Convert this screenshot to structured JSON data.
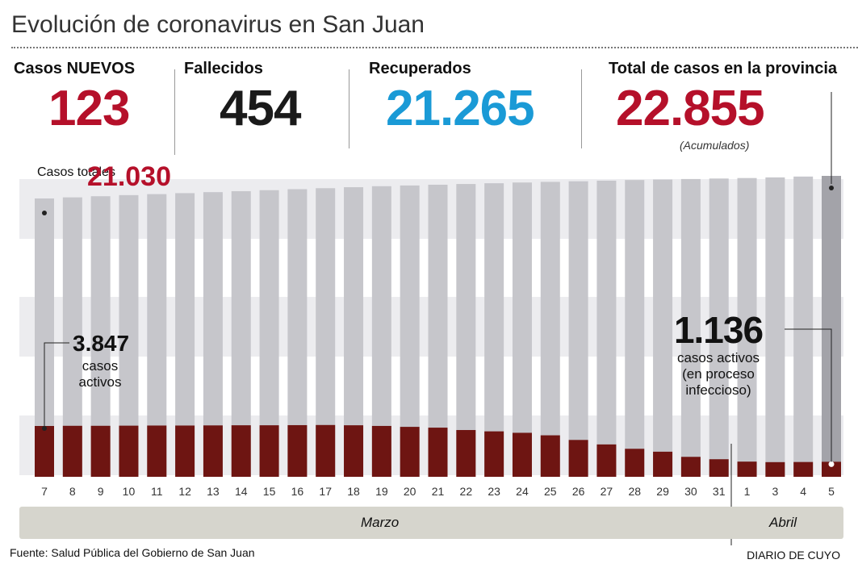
{
  "title": "Evolución de coronavirus en San Juan",
  "stats": {
    "nuevos": {
      "label": "Casos NUEVOS",
      "value": "123"
    },
    "fallecidos": {
      "label": "Fallecidos",
      "value": "454"
    },
    "recuperados": {
      "label": "Recuperados",
      "value": "21.265"
    },
    "total": {
      "label": "Total de casos en la provincia",
      "value": "22.855",
      "note": "(Acumulados)"
    }
  },
  "annotations": {
    "start_total_label": "Casos totales",
    "start_total_value": "21.030",
    "start_active_value": "3.847",
    "start_active_label": "casos activos",
    "end_active_value": "1.136",
    "end_active_label": "casos activos (en proceso infeccioso)"
  },
  "months": {
    "marzo": "Marzo",
    "abril": "Abril"
  },
  "source": "Fuente: Salud Pública del Gobierno de San Juan",
  "brand": "DIARIO DE CUYO",
  "colors": {
    "total_bar": "#c6c6cb",
    "total_bar_last": "#a3a3a9",
    "active_bar": "#6e1512",
    "accent_red": "#b5102a",
    "accent_blue": "#1a9ad6",
    "stripe": "#ececef"
  },
  "chart_data": {
    "type": "bar",
    "categories": [
      "7",
      "8",
      "9",
      "10",
      "11",
      "12",
      "13",
      "14",
      "15",
      "16",
      "17",
      "18",
      "19",
      "20",
      "21",
      "22",
      "23",
      "24",
      "25",
      "26",
      "27",
      "28",
      "29",
      "30",
      "31",
      "1",
      "3",
      "4",
      "5"
    ],
    "series": [
      {
        "name": "Casos totales",
        "values": [
          21030,
          21120,
          21210,
          21300,
          21380,
          21460,
          21540,
          21620,
          21700,
          21780,
          21860,
          21940,
          22020,
          22080,
          22140,
          22200,
          22260,
          22320,
          22370,
          22420,
          22470,
          22520,
          22560,
          22600,
          22640,
          22680,
          22732,
          22800,
          22855
        ]
      },
      {
        "name": "casos activos",
        "values": [
          3847,
          3860,
          3860,
          3870,
          3880,
          3880,
          3890,
          3900,
          3900,
          3910,
          3920,
          3900,
          3850,
          3780,
          3720,
          3540,
          3440,
          3330,
          3140,
          2790,
          2450,
          2120,
          1900,
          1510,
          1330,
          1150,
          1110,
          1120,
          1136
        ]
      }
    ]
  }
}
